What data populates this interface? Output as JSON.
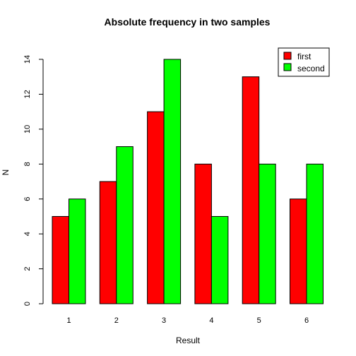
{
  "chart_data": {
    "type": "bar",
    "title": "Absolute frequency in two samples",
    "xlabel": "Result",
    "ylabel": "N",
    "categories": [
      "1",
      "2",
      "3",
      "4",
      "5",
      "6"
    ],
    "series": [
      {
        "name": "first",
        "values": [
          5,
          7,
          11,
          8,
          13,
          6
        ],
        "color": "#ff0000"
      },
      {
        "name": "second",
        "values": [
          6,
          9,
          14,
          5,
          8,
          8
        ],
        "color": "#00ff00"
      }
    ],
    "ylim": [
      0,
      14
    ],
    "yticks": [
      "0",
      "2",
      "4",
      "6",
      "8",
      "10",
      "12",
      "14"
    ],
    "grid": false,
    "legend_position": "top-right"
  }
}
